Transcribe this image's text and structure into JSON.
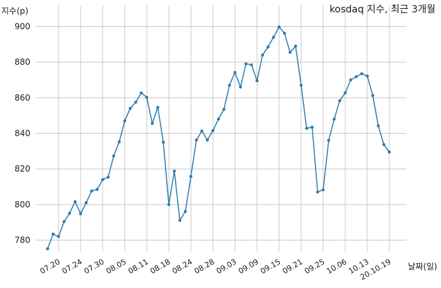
{
  "chart_data": {
    "type": "line",
    "title": "kosdaq 지수, 최근 3개월",
    "ylabel": "지수(p)",
    "xlabel": "날짜(일)",
    "ylim": [
      768,
      904
    ],
    "yticks": [
      780,
      800,
      820,
      840,
      860,
      880,
      900
    ],
    "grid": true,
    "xtick_labels": [
      "07.20",
      "07.24",
      "07.30",
      "08.05",
      "08.11",
      "08.18",
      "08.24",
      "08.28",
      "09.03",
      "09.09",
      "09.15",
      "09.21",
      "09.25",
      "10.06",
      "10.13",
      "20.10.19"
    ],
    "xtick_indices": [
      2,
      6,
      10,
      14,
      18,
      22,
      26,
      30,
      34,
      38,
      42,
      46,
      50,
      54,
      58,
      62
    ],
    "series": [
      {
        "values": [
          775.1,
          783.4,
          782.0,
          790.4,
          795.1,
          801.6,
          794.8,
          801.0,
          807.6,
          808.5,
          814.0,
          815.4,
          827.3,
          835.2,
          847.0,
          854.0,
          857.5,
          862.7,
          860.2,
          845.6,
          854.6,
          835.0,
          800.0,
          818.8,
          791.1,
          796.1,
          815.8,
          836.2,
          841.3,
          836.2,
          841.5,
          848.0,
          853.5,
          867.0,
          874.2,
          866.0,
          879.0,
          878.5,
          869.5,
          884.0,
          888.5,
          894.0,
          899.8,
          896.2,
          885.5,
          889.0,
          867.0,
          842.8,
          843.4,
          807.0,
          808.3,
          836.0,
          848.0,
          858.3,
          862.7,
          870.0,
          871.8,
          873.5,
          872.2,
          861.2,
          844.2,
          833.7,
          829.5
        ]
      }
    ]
  }
}
